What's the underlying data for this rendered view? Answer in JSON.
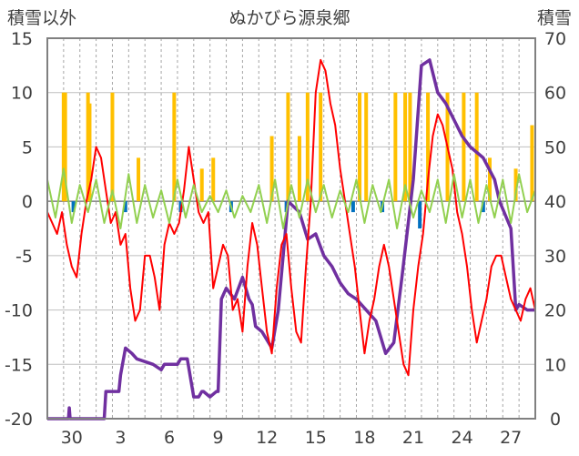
{
  "title": "ぬかびら源泉郷",
  "left_axis_title": "積雪以外",
  "right_axis_title": "積雪",
  "chart_data": {
    "type": "line",
    "title": "ぬかびら源泉郷",
    "ylabel_left": "積雪以外",
    "ylabel_right": "積雪",
    "ylim_left": [
      -20,
      15
    ],
    "ylim_right": [
      0,
      70
    ],
    "yticks_left": [
      15,
      10,
      5,
      0,
      -5,
      -10,
      -15,
      -20
    ],
    "yticks_right": [
      70,
      60,
      50,
      40,
      30,
      20,
      10,
      0
    ],
    "x_tick_labels": [
      "30",
      "3",
      "6",
      "9",
      "12",
      "15",
      "18",
      "21",
      "24",
      "27"
    ],
    "x_tick_positions": [
      1.5,
      4.5,
      7.5,
      10.5,
      13.5,
      16.5,
      19.5,
      22.5,
      25.5,
      28.5
    ],
    "x_range": [
      0,
      30
    ],
    "grid": true,
    "series": [
      {
        "name": "snow_depth",
        "axis": "right",
        "color": "#7030a0",
        "x": [
          0,
          1.0,
          1.3,
          1.35,
          1.4,
          1.5,
          3.5,
          3.6,
          4.4,
          4.5,
          4.8,
          5.2,
          5.5,
          6.5,
          7.0,
          7.2,
          8.0,
          8.2,
          8.6,
          9.0,
          9.2,
          9.3,
          9.5,
          9.6,
          10.0,
          10.4,
          10.5,
          10.7,
          11.0,
          11.5,
          12.0,
          12.4,
          12.6,
          12.8,
          13.2,
          13.8,
          14.2,
          14.8,
          15.5,
          16.0,
          16.5,
          17.0,
          17.5,
          18.0,
          18.5,
          19.0,
          19.6,
          20.2,
          20.8,
          21.3,
          21.8,
          22.5,
          23.0,
          23.5,
          24.0,
          24.5,
          25.0,
          25.5,
          26.0,
          26.8,
          27.5,
          27.8,
          28.5,
          28.8,
          29.0,
          29.5,
          30.0
        ],
        "values": [
          0,
          0,
          0,
          2,
          0,
          0,
          0,
          5,
          5,
          8,
          13,
          12,
          11,
          10,
          9,
          10,
          10,
          11,
          11,
          4,
          4,
          4,
          5,
          5,
          4,
          5,
          5,
          22,
          24,
          22,
          26,
          22,
          21,
          17,
          16,
          13,
          20,
          40,
          38,
          33,
          34,
          30,
          28,
          25,
          23,
          22,
          20,
          18,
          12,
          14,
          26,
          44,
          65,
          66,
          60,
          58,
          55,
          52,
          50,
          48,
          44,
          40,
          35,
          20,
          21,
          20,
          20
        ]
      },
      {
        "name": "temperature",
        "axis": "left",
        "color": "#ff0000",
        "x": [
          0,
          0.3,
          0.6,
          0.9,
          1.2,
          1.5,
          1.8,
          2.1,
          2.4,
          2.7,
          3.0,
          3.3,
          3.6,
          3.9,
          4.2,
          4.5,
          4.8,
          5.1,
          5.4,
          5.7,
          6.0,
          6.3,
          6.6,
          6.9,
          7.2,
          7.5,
          7.8,
          8.1,
          8.4,
          8.7,
          9.0,
          9.3,
          9.6,
          9.9,
          10.2,
          10.5,
          10.8,
          11.1,
          11.4,
          11.7,
          12.0,
          12.3,
          12.6,
          12.9,
          13.2,
          13.5,
          13.8,
          14.1,
          14.4,
          14.7,
          15.0,
          15.3,
          15.6,
          15.9,
          16.2,
          16.5,
          16.8,
          17.1,
          17.4,
          17.7,
          18.0,
          18.3,
          18.6,
          18.9,
          19.2,
          19.5,
          19.8,
          20.1,
          20.4,
          20.7,
          21.0,
          21.3,
          21.6,
          21.9,
          22.2,
          22.5,
          22.8,
          23.1,
          23.4,
          23.7,
          24.0,
          24.3,
          24.6,
          24.9,
          25.2,
          25.5,
          25.8,
          26.1,
          26.4,
          26.7,
          27.0,
          27.3,
          27.6,
          27.9,
          28.2,
          28.5,
          28.8,
          29.1,
          29.4,
          29.7,
          30.0
        ],
        "values": [
          -1,
          -2,
          -3,
          -1,
          -4,
          -6,
          -7,
          -3,
          0,
          2,
          5,
          4,
          1,
          -2,
          -1,
          -4,
          -3,
          -8,
          -11,
          -10,
          -5,
          -5,
          -7,
          -10,
          -4,
          -2,
          -3,
          -2,
          1,
          5,
          2,
          -1,
          -2,
          -1,
          -8,
          -6,
          -4,
          -5,
          -10,
          -9,
          -12,
          -6,
          -2,
          -4,
          -8,
          -12,
          -14,
          -8,
          -4,
          -3,
          -8,
          -12,
          -13,
          -6,
          0,
          10,
          13,
          12,
          9,
          7,
          3,
          0,
          -3,
          -6,
          -10,
          -14,
          -11,
          -9,
          -6,
          -4,
          -6,
          -9,
          -12,
          -15,
          -16,
          -10,
          -6,
          -3,
          2,
          6,
          8,
          7,
          5,
          3,
          -1,
          -3,
          -6,
          -10,
          -13,
          -11,
          -9,
          -6,
          -5,
          -5,
          -7,
          -9,
          -10,
          -11,
          -9,
          -8,
          -10
        ]
      },
      {
        "name": "daily_variation",
        "axis": "left",
        "color": "#92d050",
        "x": [
          0,
          0.5,
          1.0,
          1.5,
          2.0,
          2.5,
          3.0,
          3.5,
          4.0,
          4.5,
          5.0,
          5.5,
          6.0,
          6.5,
          7.0,
          7.5,
          8.0,
          8.5,
          9.0,
          9.5,
          10.0,
          10.5,
          11.0,
          11.5,
          12.0,
          12.5,
          13.0,
          13.5,
          14.0,
          14.5,
          15.0,
          15.5,
          16.0,
          16.5,
          17.0,
          17.5,
          18.0,
          18.5,
          19.0,
          19.5,
          20.0,
          20.5,
          21.0,
          21.5,
          22.0,
          22.5,
          23.0,
          23.5,
          24.0,
          24.5,
          25.0,
          25.5,
          26.0,
          26.5,
          27.0,
          27.5,
          28.0,
          28.5,
          29.0,
          29.5,
          30.0
        ],
        "values": [
          2,
          -1.5,
          3,
          -2,
          1.5,
          -1,
          2,
          -2,
          1,
          -2.5,
          2.5,
          -2,
          1.5,
          -1.5,
          1,
          -2,
          2,
          -1.5,
          1.5,
          -1,
          0.5,
          -1,
          1,
          -1.5,
          0.5,
          -1,
          1.5,
          -2,
          2,
          -2.5,
          1.5,
          -1.5,
          2,
          -1,
          1.5,
          -1.5,
          1,
          -1,
          2,
          -2,
          1.5,
          -1,
          2,
          -2.5,
          1.5,
          -1.5,
          1,
          -1,
          2,
          -2,
          2.5,
          -1.5,
          2,
          -2,
          1.5,
          -1.5,
          2,
          -2,
          2.5,
          -1,
          1
        ]
      },
      {
        "name": "precipitation",
        "axis": "left",
        "type": "bar",
        "color": "#ffc000",
        "x": [
          1.0,
          1.1,
          2.5,
          2.6,
          4.0,
          5.6,
          7.8,
          9.5,
          10.2,
          13.8,
          14.8,
          15.5,
          16.0,
          16.8,
          19.2,
          19.6,
          21.4,
          22.0,
          22.3,
          23.4,
          24.6,
          25.6,
          26.4,
          27.2,
          28.8,
          29.8
        ],
        "values": [
          10,
          10,
          10,
          9,
          10,
          4,
          10,
          3,
          4,
          6,
          10,
          6,
          10,
          10,
          10,
          10,
          10,
          10,
          10,
          10,
          10,
          10,
          10,
          4,
          3,
          7
        ]
      },
      {
        "name": "negative_bars",
        "axis": "left",
        "type": "bar",
        "color": "#0070c0",
        "x": [
          1.6,
          4.8,
          8.2,
          11.3,
          14.7,
          18.8,
          20.6,
          22.9,
          26.8
        ],
        "values": [
          -1,
          -1,
          -1,
          -1,
          -1,
          -1,
          -1,
          -2.5,
          -1
        ]
      }
    ]
  }
}
